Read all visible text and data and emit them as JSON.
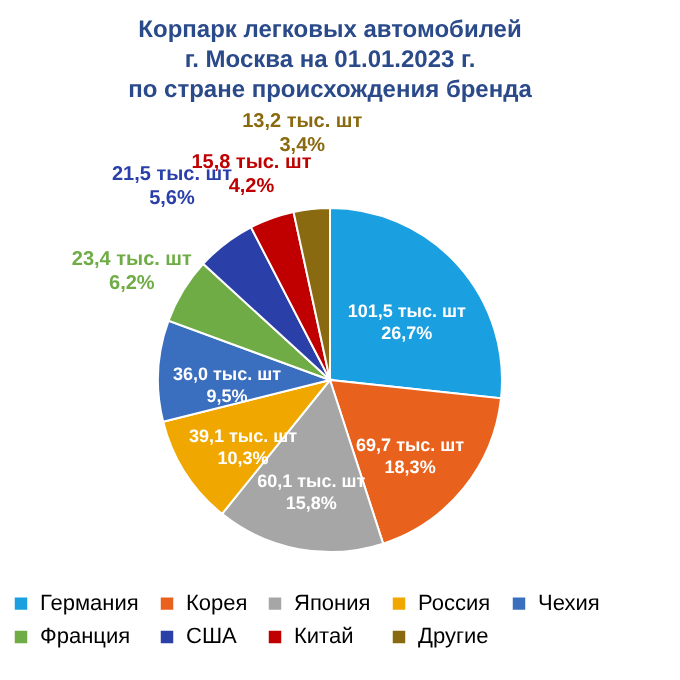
{
  "chart_data": {
    "type": "pie",
    "title": [
      "Корпарк легковых автомобилей",
      "г. Москва на 01.01.2023 г.",
      "по стране происхождения бренда"
    ],
    "categories": [
      "Германия",
      "Корея",
      "Япония",
      "Россия",
      "Чехия",
      "Франция",
      "США",
      "Китай",
      "Другие"
    ],
    "values": [
      26.7,
      18.3,
      15.8,
      10.3,
      9.5,
      6.2,
      5.6,
      4.2,
      3.4
    ],
    "colors": [
      "#1a9fe0",
      "#e8621e",
      "#a6a6a6",
      "#f0a800",
      "#3a6fc0",
      "#6fac46",
      "#2a3fa8",
      "#c00000",
      "#8a6a10"
    ],
    "value_labels": [
      "101,5 тыс. шт\n26,7%",
      "69,7 тыс. шт\n18,3%",
      "60,1 тыс. шт\n15,8%",
      "39,1 тыс. шт\n10,3%",
      "36,0 тыс. шт\n9,5%",
      "23,4 тыс. шт\n6,2%",
      "21,5 тыс. шт\n5,6%",
      "15,8 тыс. шт\n4,2%",
      "13,2 тыс. шт\n3,4%"
    ],
    "legend": "bottom"
  }
}
